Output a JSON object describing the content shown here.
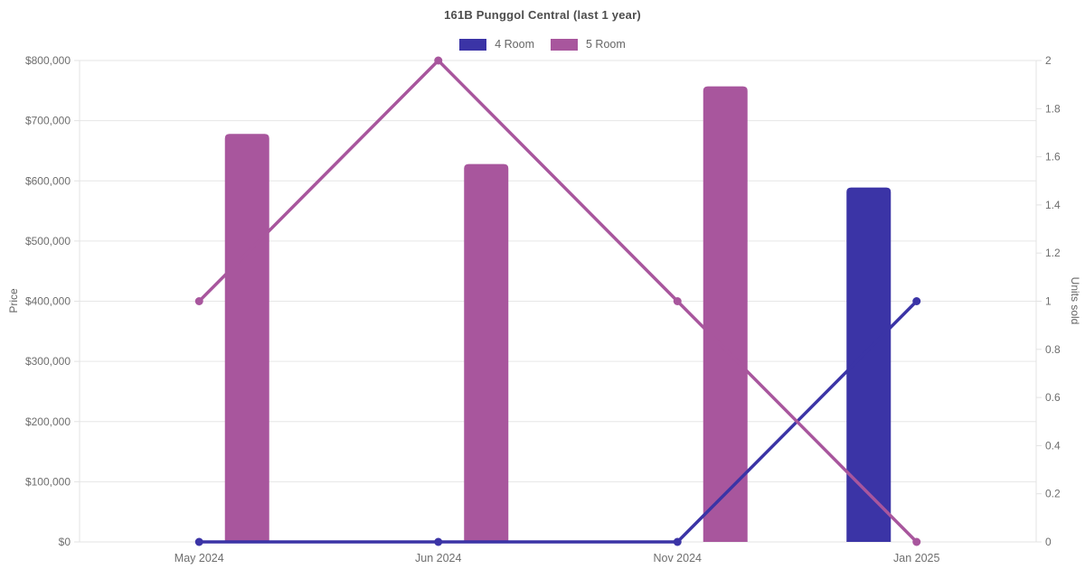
{
  "title": "161B Punggol Central (last 1 year)",
  "chart_data": {
    "type": "combo-bar-line",
    "title": "161B Punggol Central (last 1 year)",
    "categories": [
      "May 2024",
      "Jun 2024",
      "Nov 2024",
      "Jan 2025"
    ],
    "bar_series": [
      {
        "name": "4 Room",
        "color": "#3b34a6",
        "axis": "left",
        "values": [
          null,
          null,
          null,
          589000
        ]
      },
      {
        "name": "5 Room",
        "color": "#a8569d",
        "axis": "left",
        "values": [
          678000,
          628000,
          757000,
          null
        ]
      }
    ],
    "line_series": [
      {
        "name": "4 Room",
        "color": "#3b34a6",
        "axis": "right",
        "values": [
          0,
          0,
          0,
          1
        ]
      },
      {
        "name": "5 Room",
        "color": "#a8569d",
        "axis": "right",
        "values": [
          1,
          2,
          1,
          0
        ]
      }
    ],
    "left_axis": {
      "label": "Price",
      "min": 0,
      "max": 800000,
      "tick_step": 100000,
      "prefix": "$"
    },
    "right_axis": {
      "label": "Units sold",
      "min": 0,
      "max": 2,
      "tick_step": 0.2
    },
    "legend": [
      {
        "label": "4 Room",
        "color": "#3b34a6"
      },
      {
        "label": "5 Room",
        "color": "#a8569d"
      }
    ],
    "legend_position": "top",
    "grid": "horizontal",
    "grid_color": "#e6e6e6",
    "axis_line_color": "#e3e3e3",
    "tick_label_color": "#6e6e6e"
  }
}
